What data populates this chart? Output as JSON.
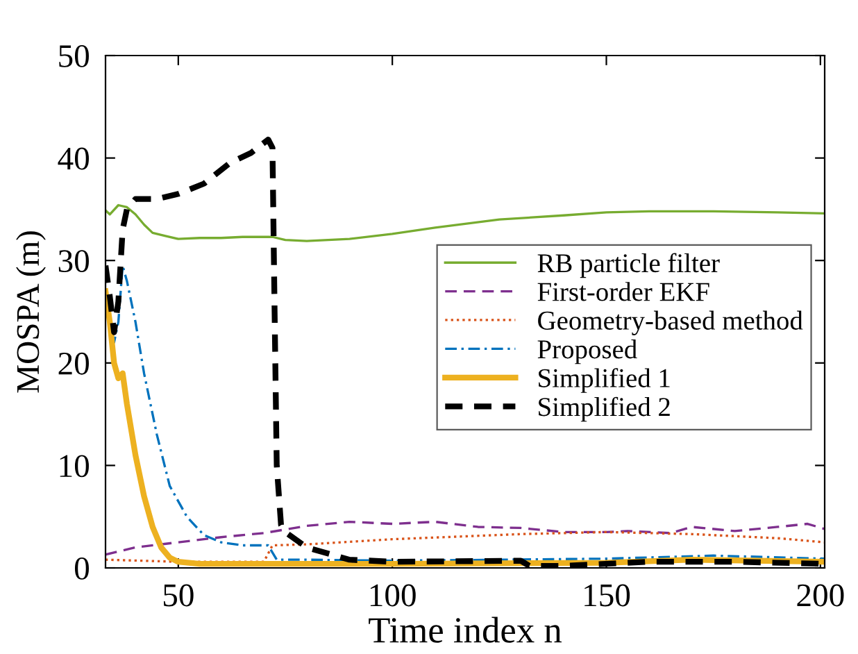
{
  "chart_data": {
    "type": "line",
    "xlabel": "Time index n",
    "ylabel": "MOSPA (m)",
    "xlim": [
      33,
      201
    ],
    "ylim": [
      0,
      50
    ],
    "xticks": [
      50,
      100,
      150,
      200
    ],
    "yticks": [
      0,
      10,
      20,
      30,
      40,
      50
    ],
    "grid": false,
    "legend": "right",
    "marker": "none",
    "series": [
      {
        "name": "RB particle filter",
        "color": "#77ac30",
        "line_style": "solid",
        "x": [
          33,
          34,
          36,
          38,
          40,
          42,
          44,
          47,
          50,
          55,
          60,
          65,
          72,
          75,
          80,
          90,
          100,
          110,
          125,
          140,
          150,
          160,
          175,
          190,
          201
        ],
        "values": [
          34.9,
          34.5,
          35.4,
          35.2,
          34.5,
          33.5,
          32.7,
          32.4,
          32.1,
          32.2,
          32.2,
          32.3,
          32.3,
          32.0,
          31.9,
          32.1,
          32.6,
          33.2,
          34.0,
          34.4,
          34.7,
          34.8,
          34.8,
          34.7,
          34.6
        ]
      },
      {
        "name": "First-order EKF",
        "color": "#7e2f8e",
        "line_style": "dashed",
        "x": [
          33,
          40,
          50,
          60,
          70,
          80,
          90,
          100,
          110,
          120,
          130,
          140,
          150,
          155,
          165,
          170,
          180,
          190,
          197,
          201
        ],
        "values": [
          1.3,
          2.0,
          2.5,
          3.0,
          3.4,
          4.1,
          4.5,
          4.3,
          4.5,
          4.0,
          3.9,
          3.5,
          3.5,
          3.6,
          3.4,
          4.0,
          3.6,
          4.0,
          4.3,
          3.8
        ]
      },
      {
        "name": "Geometry-based method",
        "color": "#d95319",
        "line_style": "dotted",
        "x": [
          33,
          50,
          70,
          72,
          80,
          100,
          130,
          150,
          170,
          190,
          201
        ],
        "values": [
          0.8,
          0.6,
          0.6,
          2.2,
          2.3,
          2.8,
          3.3,
          3.5,
          3.3,
          2.9,
          2.5
        ]
      },
      {
        "name": "Proposed",
        "color": "#0072bd",
        "line_style": "dashdot",
        "x": [
          33,
          35,
          36,
          37,
          38,
          40,
          42,
          45,
          48,
          52,
          56,
          60,
          65,
          71,
          72,
          73,
          80,
          100,
          150,
          175,
          201
        ],
        "values": [
          27,
          22,
          24,
          29.5,
          28,
          24,
          19,
          13,
          8,
          5,
          3.2,
          2.5,
          2.2,
          2.2,
          1.5,
          0.8,
          0.8,
          0.7,
          0.9,
          1.2,
          0.9
        ]
      },
      {
        "name": "Simplified 1",
        "color": "#edb120",
        "line_style": "solid",
        "x": [
          33,
          34,
          35,
          36,
          37,
          38,
          40,
          42,
          44,
          46,
          48,
          50,
          55,
          100,
          150,
          170,
          201
        ],
        "values": [
          27,
          24,
          20,
          18.5,
          19,
          16,
          11,
          7,
          4,
          2,
          1,
          0.6,
          0.4,
          0.4,
          0.5,
          0.8,
          0.6
        ]
      },
      {
        "name": "Simplified 2",
        "color": "#000000",
        "line_style": "dashed",
        "x": [
          33,
          34,
          35,
          36,
          37,
          38,
          40,
          45,
          50,
          56,
          62,
          67,
          71,
          72,
          72.5,
          73,
          74,
          75,
          80,
          90,
          100,
          130,
          132,
          140,
          160,
          180,
          201
        ],
        "values": [
          29.5,
          26.5,
          23,
          26,
          33,
          35,
          36,
          36,
          36.5,
          37.5,
          39.5,
          40.5,
          41.8,
          41,
          25,
          10,
          4.2,
          3.5,
          2.0,
          0.8,
          0.6,
          0.7,
          0.2,
          0.2,
          0.6,
          0.6,
          0.4
        ]
      }
    ]
  }
}
